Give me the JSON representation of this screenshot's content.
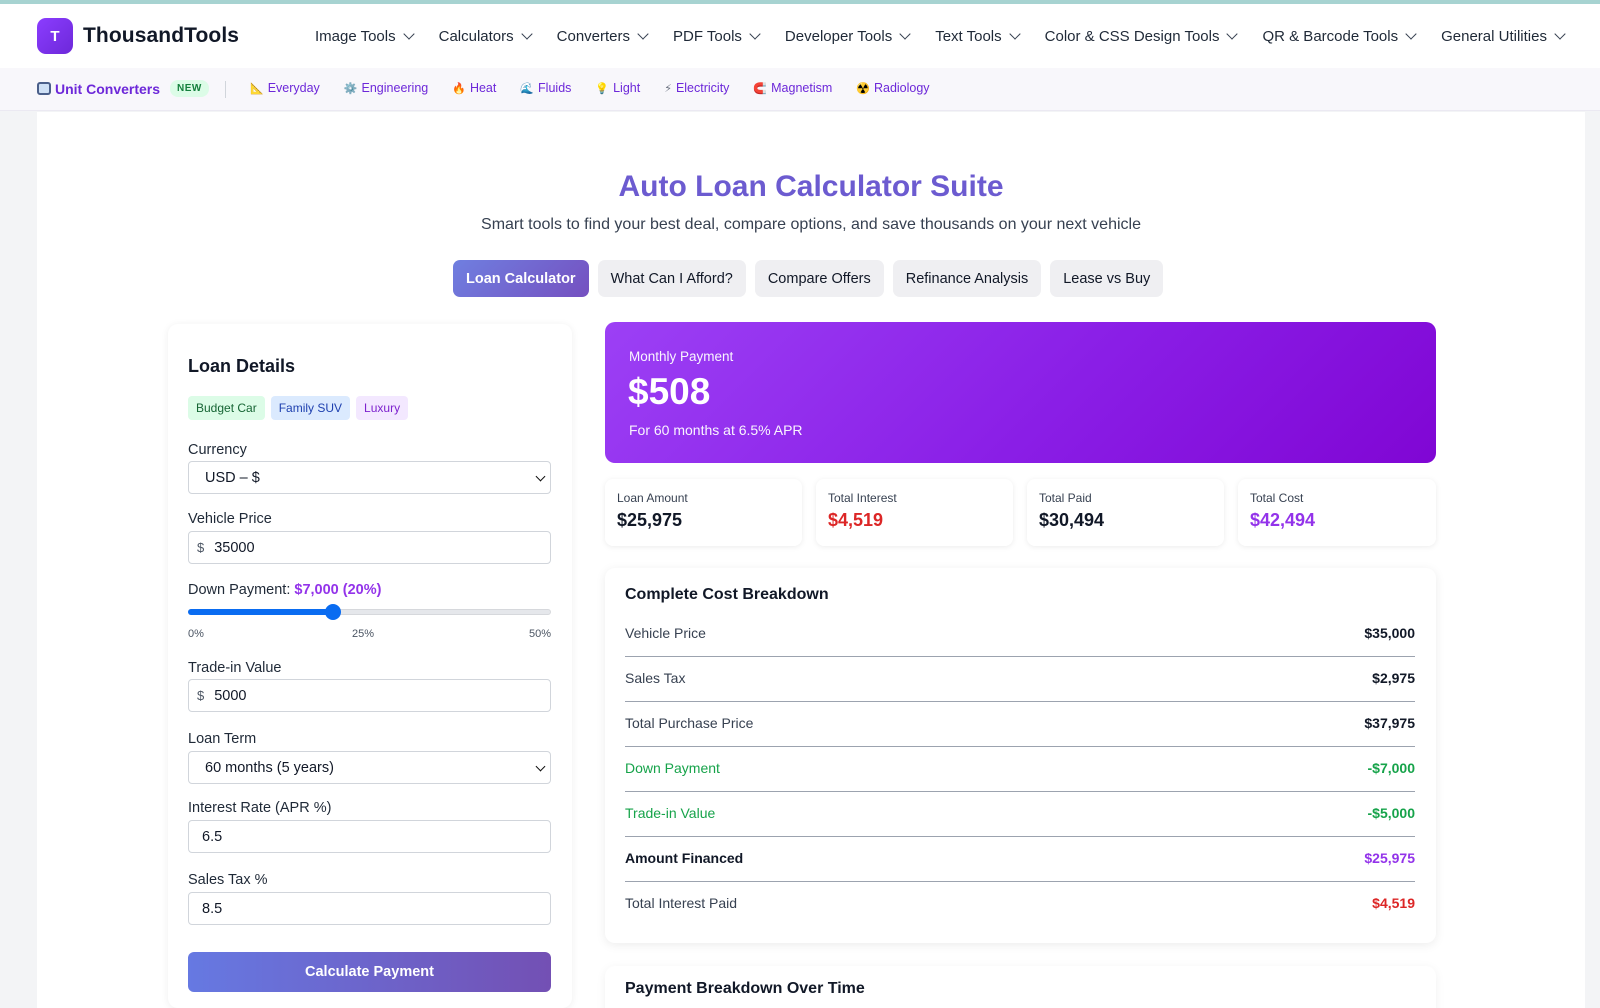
{
  "brand": {
    "logo_letter": "T",
    "name": "ThousandTools"
  },
  "nav": [
    "Image Tools",
    "Calculators",
    "Converters",
    "PDF Tools",
    "Developer Tools",
    "Text Tools",
    "Color & CSS Design Tools",
    "QR & Barcode Tools",
    "General Utilities"
  ],
  "subnav": {
    "main_label": "Unit Converters",
    "badge": "NEW",
    "links": [
      {
        "icon": "📐",
        "label": "Everyday"
      },
      {
        "icon": "⚙️",
        "label": "Engineering"
      },
      {
        "icon": "🔥",
        "label": "Heat"
      },
      {
        "icon": "🌊",
        "label": "Fluids"
      },
      {
        "icon": "💡",
        "label": "Light"
      },
      {
        "icon": "⚡",
        "label": "Electricity"
      },
      {
        "icon": "🧲",
        "label": "Magnetism"
      },
      {
        "icon": "☢️",
        "label": "Radiology"
      }
    ]
  },
  "page": {
    "title": "Auto Loan Calculator Suite",
    "subtitle": "Smart tools to find your best deal, compare options, and save thousands on your next vehicle",
    "tabs": [
      "Loan Calculator",
      "What Can I Afford?",
      "Compare Offers",
      "Refinance Analysis",
      "Lease vs Buy"
    ],
    "active_tab": "Loan Calculator"
  },
  "form": {
    "title": "Loan Details",
    "presets": [
      "Budget Car",
      "Family SUV",
      "Luxury"
    ],
    "currency_label": "Currency",
    "currency_value": "USD – $",
    "vehicle_price_label": "Vehicle Price",
    "currency_prefix": "$",
    "vehicle_price_value": "35000",
    "down_payment_label": "Down Payment:",
    "down_payment_value": "$7,000 (20%)",
    "down_payment_percent": 20,
    "down_payment_max_percent": 50,
    "slider_ticks": [
      "0%",
      "25%",
      "50%"
    ],
    "trade_in_label": "Trade-in Value",
    "trade_in_value": "5000",
    "loan_term_label": "Loan Term",
    "loan_term_value": "60 months (5 years)",
    "interest_label": "Interest Rate (APR %)",
    "interest_value": "6.5",
    "sales_tax_label": "Sales Tax %",
    "sales_tax_value": "8.5",
    "calculate_label": "Calculate Payment"
  },
  "results": {
    "monthly_label": "Monthly Payment",
    "monthly_value": "$508",
    "monthly_sub": "For 60 months at 6.5% APR",
    "stats": [
      {
        "label": "Loan Amount",
        "value": "$25,975",
        "color": "#111827"
      },
      {
        "label": "Total Interest",
        "value": "$4,519",
        "color": "#dc2626"
      },
      {
        "label": "Total Paid",
        "value": "$30,494",
        "color": "#111827"
      },
      {
        "label": "Total Cost",
        "value": "$42,494",
        "color": "#9333ea"
      }
    ]
  },
  "breakdown": {
    "title": "Complete Cost Breakdown",
    "rows": [
      {
        "label": "Vehicle Price",
        "value": "$35,000"
      },
      {
        "label": "Sales Tax",
        "value": "$2,975"
      },
      {
        "label": "Total Purchase Price",
        "value": "$37,975"
      },
      {
        "label": "Down Payment",
        "value": "-$7,000"
      },
      {
        "label": "Trade-in Value",
        "value": "-$5,000"
      },
      {
        "label": "Amount Financed",
        "value": "$25,975"
      },
      {
        "label": "Total Interest Paid",
        "value": "$4,519"
      }
    ]
  },
  "next_section": {
    "title": "Payment Breakdown Over Time"
  },
  "colors": {
    "accent": "#6d28d9",
    "hero_gradient_start": "#9c40f5",
    "hero_gradient_end": "#8006d4",
    "negative": "#16a34a",
    "interest": "#dc2626",
    "slider": "#0a6cf1"
  }
}
